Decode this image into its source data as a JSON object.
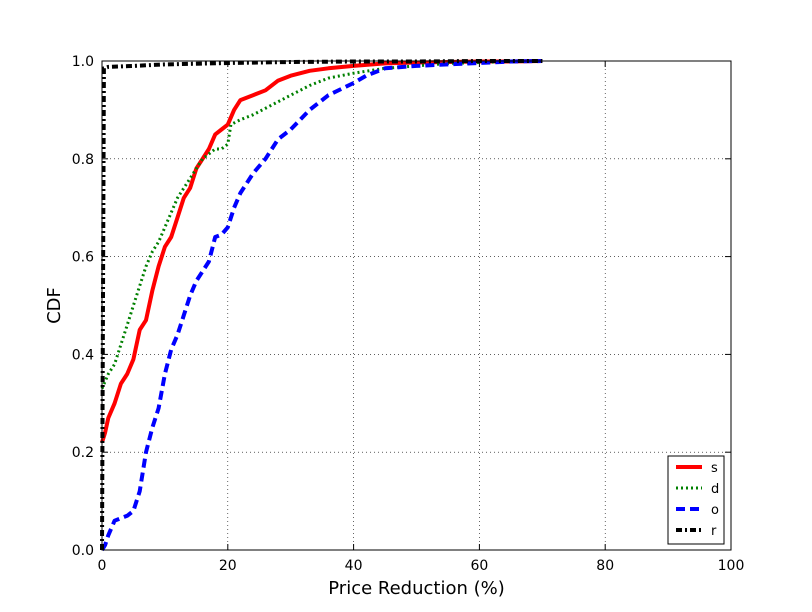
{
  "chart_data": {
    "type": "line",
    "xlabel": "Price Reduction (%)",
    "ylabel": "CDF",
    "xlim": [
      0,
      100
    ],
    "ylim": [
      0,
      1
    ],
    "xticks": [
      "0",
      "20",
      "40",
      "60",
      "80",
      "100"
    ],
    "yticks": [
      "0.0",
      "0.2",
      "0.4",
      "0.6",
      "0.8",
      "1.0"
    ],
    "grid": true,
    "legend_position": "lower-right",
    "series": [
      {
        "name": "s",
        "color": "#ff0000",
        "style": "solid",
        "x": [
          0,
          0.5,
          1,
          2,
          3,
          4,
          5,
          6,
          7,
          8,
          9,
          10,
          11,
          12,
          13,
          14,
          15,
          16,
          17,
          18,
          19,
          20,
          21,
          22,
          24,
          26,
          28,
          30,
          33,
          36,
          40,
          45,
          50,
          55,
          60,
          65,
          70
        ],
        "y": [
          0.22,
          0.24,
          0.27,
          0.3,
          0.34,
          0.36,
          0.39,
          0.45,
          0.47,
          0.53,
          0.58,
          0.62,
          0.64,
          0.68,
          0.72,
          0.74,
          0.78,
          0.8,
          0.82,
          0.85,
          0.86,
          0.87,
          0.9,
          0.92,
          0.93,
          0.94,
          0.96,
          0.97,
          0.98,
          0.985,
          0.99,
          0.995,
          0.997,
          0.998,
          0.999,
          0.999,
          1.0
        ]
      },
      {
        "name": "d",
        "color": "#008000",
        "style": "dotted",
        "x": [
          0,
          1,
          2,
          3,
          4,
          5,
          6,
          7,
          8,
          9,
          10,
          11,
          12,
          13,
          14,
          15,
          16,
          17,
          18,
          19,
          20,
          20.5,
          22,
          24,
          27,
          30,
          33,
          36,
          40,
          45,
          50,
          55,
          60,
          65,
          70
        ],
        "y": [
          0.33,
          0.36,
          0.38,
          0.42,
          0.46,
          0.5,
          0.54,
          0.58,
          0.61,
          0.63,
          0.66,
          0.69,
          0.72,
          0.74,
          0.76,
          0.78,
          0.8,
          0.81,
          0.82,
          0.82,
          0.83,
          0.87,
          0.88,
          0.89,
          0.91,
          0.93,
          0.95,
          0.965,
          0.975,
          0.985,
          0.99,
          0.995,
          0.997,
          0.999,
          1.0
        ]
      },
      {
        "name": "o",
        "color": "#0000ff",
        "style": "dashed",
        "x": [
          0,
          0.5,
          1,
          2,
          3,
          4,
          5,
          6,
          7,
          8,
          9,
          10,
          11,
          12,
          13,
          14,
          15,
          16,
          17,
          18,
          19,
          20,
          21,
          22,
          24,
          26,
          28,
          30,
          33,
          36,
          40,
          42,
          45,
          50,
          55,
          60,
          65,
          70
        ],
        "y": [
          0.0,
          0.01,
          0.03,
          0.06,
          0.065,
          0.07,
          0.08,
          0.12,
          0.2,
          0.25,
          0.29,
          0.36,
          0.41,
          0.44,
          0.48,
          0.52,
          0.55,
          0.57,
          0.59,
          0.64,
          0.645,
          0.66,
          0.7,
          0.73,
          0.77,
          0.8,
          0.84,
          0.86,
          0.9,
          0.93,
          0.955,
          0.97,
          0.985,
          0.99,
          0.993,
          0.996,
          0.999,
          1.0
        ]
      },
      {
        "name": "r",
        "color": "#000000",
        "style": "dashdot",
        "x": [
          0,
          0.3,
          1,
          5,
          10,
          20,
          30,
          40,
          50,
          60,
          70
        ],
        "y": [
          0.0,
          0.985,
          0.988,
          0.99,
          0.993,
          0.996,
          0.998,
          0.999,
          0.999,
          1.0,
          1.0
        ]
      }
    ]
  }
}
